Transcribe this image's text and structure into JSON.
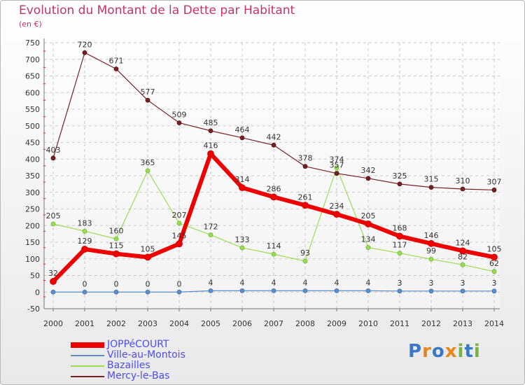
{
  "chart_data": {
    "type": "line",
    "title": "Evolution du Montant de la Dette par Habitant",
    "subtitle": "(en €)",
    "x": [
      "2000",
      "2001",
      "2002",
      "2003",
      "2004",
      "2005",
      "2006",
      "2007",
      "2008",
      "2009",
      "2010",
      "2011",
      "2012",
      "2013",
      "2014"
    ],
    "ylim": [
      -50,
      750
    ],
    "yticks": [
      -50,
      0,
      50,
      100,
      150,
      200,
      250,
      300,
      350,
      400,
      450,
      500,
      550,
      600,
      650,
      700,
      750
    ],
    "grid": true,
    "legend_position": "bottom-left",
    "series": [
      {
        "name": "JOPPéCOURT",
        "color": "#ee0000",
        "values": [
          32,
          129,
          115,
          105,
          145,
          416,
          314,
          286,
          261,
          234,
          205,
          168,
          146,
          124,
          105
        ],
        "labels": [
          "32",
          "129",
          "115",
          "105",
          "145",
          "416",
          "314",
          "286",
          "261",
          "234",
          "205",
          "168",
          "146",
          "124",
          "105"
        ]
      },
      {
        "name": "Ville-au-Montois",
        "color": "#5b8fc9",
        "values": [
          0,
          0,
          0,
          0,
          0,
          4,
          4,
          4,
          4,
          4,
          4,
          3,
          3,
          3,
          3
        ],
        "labels": [
          "",
          "0",
          "0",
          "0",
          "0",
          "4",
          "4",
          "4",
          "4",
          "4",
          "4",
          "3",
          "3",
          "3",
          "3"
        ]
      },
      {
        "name": "Bazailles",
        "color": "#99dd55",
        "values": [
          205,
          183,
          160,
          365,
          207,
          172,
          133,
          114,
          93,
          374,
          134,
          117,
          99,
          82,
          62
        ],
        "labels": [
          "205",
          "183",
          "160",
          "365",
          "207",
          "172",
          "133",
          "114",
          "93",
          "374",
          "134",
          "117",
          "99",
          "82",
          "62"
        ]
      },
      {
        "name": "Mercy-le-Bas",
        "color": "#772222",
        "values": [
          403,
          720,
          671,
          577,
          509,
          485,
          464,
          442,
          378,
          357,
          342,
          325,
          315,
          310,
          307
        ],
        "labels": [
          "403",
          "720",
          "671",
          "577",
          "509",
          "485",
          "464",
          "442",
          "378",
          "357",
          "342",
          "325",
          "315",
          "310",
          "307"
        ]
      }
    ]
  },
  "brand": {
    "letters": [
      "P",
      "r",
      "o",
      "x",
      "i",
      "t",
      "i"
    ],
    "colors": [
      "#3a78c8",
      "#e8861a",
      "#3a78c8",
      "#e8861a",
      "#78b43c",
      "#3a78c8",
      "#78b43c"
    ]
  }
}
